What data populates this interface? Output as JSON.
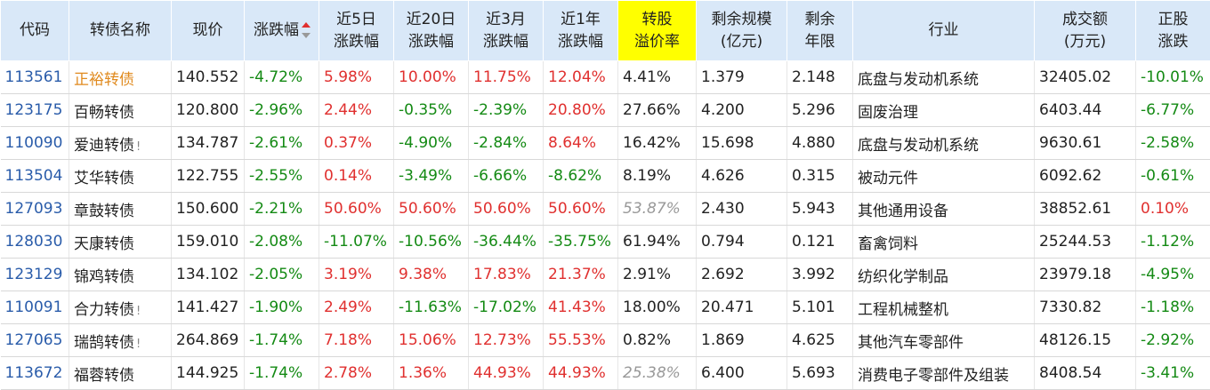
{
  "headers": {
    "code": "代码",
    "name": "转债名称",
    "price": "现价",
    "change": "涨跌幅",
    "d5_1": "近5日",
    "d5_2": "涨跌幅",
    "d20_1": "近20日",
    "d20_2": "涨跌幅",
    "m3_1": "近3月",
    "m3_2": "涨跌幅",
    "y1_1": "近1年",
    "y1_2": "涨跌幅",
    "prem_1": "转股",
    "prem_2": "溢价率",
    "scale_1": "剩余规模",
    "scale_2": "(亿元)",
    "years_1": "剩余",
    "years_2": "年限",
    "industry": "行业",
    "turnover_1": "成交额",
    "turnover_2": "(万元)",
    "stock_1": "正股",
    "stock_2": "涨跌"
  },
  "rows": [
    {
      "code": "113561",
      "name": "正裕转债",
      "warn": "",
      "price": "140.552",
      "chg": "-4.72%",
      "d5": "5.98%",
      "d20": "10.00%",
      "m3": "11.75%",
      "y1": "12.04%",
      "prem": "4.41%",
      "scale": "1.379",
      "years": "2.148",
      "industry": "底盘与发动机系统",
      "turnover": "32405.02",
      "stock": "-10.01%"
    },
    {
      "code": "123175",
      "name": "百畅转债",
      "warn": "",
      "price": "120.800",
      "chg": "-2.96%",
      "d5": "2.44%",
      "d20": "-0.35%",
      "m3": "-2.39%",
      "y1": "20.80%",
      "prem": "27.66%",
      "scale": "4.200",
      "years": "5.296",
      "industry": "固废治理",
      "turnover": "6403.44",
      "stock": "-6.77%"
    },
    {
      "code": "110090",
      "name": "爱迪转债",
      "warn": "!",
      "price": "134.787",
      "chg": "-2.61%",
      "d5": "0.37%",
      "d20": "-4.90%",
      "m3": "-2.84%",
      "y1": "8.64%",
      "prem": "16.42%",
      "scale": "15.698",
      "years": "4.880",
      "industry": "底盘与发动机系统",
      "turnover": "9630.61",
      "stock": "-2.58%"
    },
    {
      "code": "113504",
      "name": "艾华转债",
      "warn": "",
      "price": "122.755",
      "chg": "-2.55%",
      "d5": "0.14%",
      "d20": "-3.49%",
      "m3": "-6.66%",
      "y1": "-8.62%",
      "prem": "8.19%",
      "scale": "4.626",
      "years": "0.315",
      "industry": "被动元件",
      "turnover": "6092.62",
      "stock": "-0.61%"
    },
    {
      "code": "127093",
      "name": "章鼓转债",
      "warn": "",
      "price": "150.600",
      "chg": "-2.21%",
      "d5": "50.60%",
      "d20": "50.60%",
      "m3": "50.60%",
      "y1": "50.60%",
      "prem": "53.87%",
      "scale": "2.430",
      "years": "5.943",
      "industry": "其他通用设备",
      "turnover": "38852.61",
      "stock": "0.10%"
    },
    {
      "code": "128030",
      "name": "天康转债",
      "warn": "",
      "price": "159.010",
      "chg": "-2.08%",
      "d5": "-11.07%",
      "d20": "-10.56%",
      "m3": "-36.44%",
      "y1": "-35.75%",
      "prem": "61.94%",
      "scale": "0.794",
      "years": "0.121",
      "industry": "畜禽饲料",
      "turnover": "25244.53",
      "stock": "-1.12%"
    },
    {
      "code": "123129",
      "name": "锦鸡转债",
      "warn": "",
      "price": "134.102",
      "chg": "-2.05%",
      "d5": "3.19%",
      "d20": "9.38%",
      "m3": "17.83%",
      "y1": "21.37%",
      "prem": "2.91%",
      "scale": "2.692",
      "years": "3.992",
      "industry": "纺织化学制品",
      "turnover": "23979.18",
      "stock": "-4.95%"
    },
    {
      "code": "110091",
      "name": "合力转债",
      "warn": "!",
      "price": "141.427",
      "chg": "-1.90%",
      "d5": "2.49%",
      "d20": "-11.63%",
      "m3": "-17.02%",
      "y1": "41.43%",
      "prem": "18.00%",
      "scale": "20.471",
      "years": "5.101",
      "industry": "工程机械整机",
      "turnover": "7330.82",
      "stock": "-1.18%"
    },
    {
      "code": "127065",
      "name": "瑞鹄转债",
      "warn": "!",
      "price": "264.869",
      "chg": "-1.74%",
      "d5": "7.18%",
      "d20": "15.06%",
      "m3": "12.73%",
      "y1": "55.53%",
      "prem": "0.82%",
      "scale": "1.869",
      "years": "4.625",
      "industry": "其他汽车零部件",
      "turnover": "48126.15",
      "stock": "-2.92%"
    },
    {
      "code": "113672",
      "name": "福蓉转债",
      "warn": "",
      "price": "144.925",
      "chg": "-1.74%",
      "d5": "2.78%",
      "d20": "1.36%",
      "m3": "44.93%",
      "y1": "44.93%",
      "prem": "25.38%",
      "scale": "6.400",
      "years": "5.693",
      "industry": "消费电子零部件及组装",
      "turnover": "8408.54",
      "stock": "-3.41%"
    }
  ],
  "styles": {
    "orange_name_rows": [
      0
    ],
    "grey_italic_premium_rows": [
      4,
      9
    ]
  },
  "colors": {
    "up": "#e0302f",
    "down": "#148a14",
    "code": "#2a5caa",
    "header_bg": "#d9e8f8",
    "highlight": "#ffff00"
  }
}
